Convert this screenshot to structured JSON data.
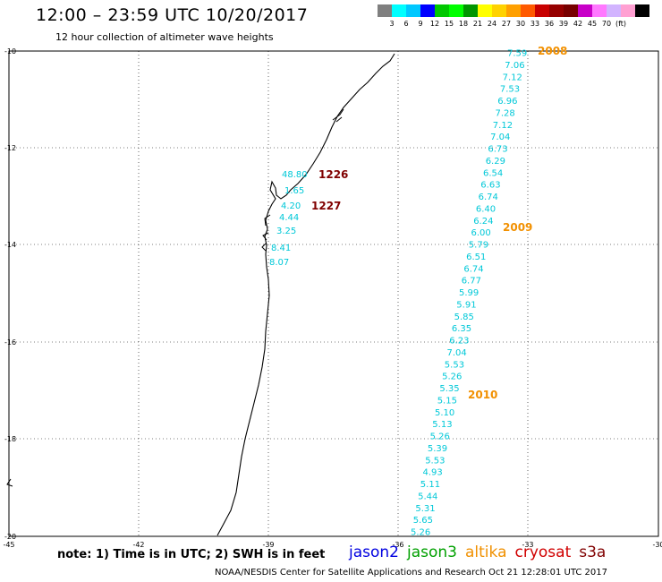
{
  "header": {
    "title": "12:00 – 23:59 UTC 10/20/2017",
    "subtitle": "12 hour collection of altimeter wave heights"
  },
  "colorbar": {
    "colors": [
      "#7f7f7f",
      "#00ffff",
      "#00c8ff",
      "#0000ff",
      "#00c800",
      "#00ff00",
      "#009600",
      "#ffff00",
      "#ffd200",
      "#ffa000",
      "#ff5a00",
      "#c80000",
      "#960000",
      "#780000",
      "#c800c8",
      "#ff78ff",
      "#d2b4ff",
      "#ffa0d2",
      "#000000"
    ],
    "labels": [
      "3",
      "6",
      "9",
      "12",
      "15",
      "18",
      "21",
      "24",
      "27",
      "30",
      "33",
      "36",
      "39",
      "42",
      "45",
      "70",
      "(ft)"
    ]
  },
  "map": {
    "y_ticks": [
      "-10",
      "-12",
      "-14",
      "-16",
      "-18",
      "-20"
    ],
    "x_ticks": [
      "-45",
      "-42",
      "-39",
      "-36",
      "-33",
      "-30"
    ]
  },
  "track_main": {
    "color": "#00c8d8",
    "values": [
      "7.59",
      "7.06",
      "7.12",
      "7.53",
      "6.96",
      "7.28",
      "7.12",
      "7.04",
      "6.73",
      "6.29",
      "6.54",
      "6.63",
      "6.74",
      "6.40",
      "6.24",
      "6.00",
      "5.79",
      "6.51",
      "6.74",
      "6.77",
      "5.99",
      "5.91",
      "5.85",
      "6.35",
      "6.23",
      "7.04",
      "5.53",
      "5.26",
      "5.35",
      "5.15",
      "5.10",
      "5.13",
      "5.26",
      "5.39",
      "5.53",
      "4.93",
      "5.11",
      "5.44",
      "5.31",
      "5.65",
      "5.26"
    ]
  },
  "track_coastal": {
    "values": [
      "48.80",
      "1.65",
      "4.20",
      "4.44",
      "3.25",
      "8.41",
      "8.07"
    ],
    "colors": [
      "#ff78ff",
      "#ff78ff",
      "#00c8d8",
      "#00c8d8",
      "#00c8d8",
      "#ffff00",
      "#66dd44"
    ]
  },
  "time_tags": [
    {
      "label": "2008",
      "color": "#f29000"
    },
    {
      "label": "2009",
      "color": "#f29000"
    },
    {
      "label": "2010",
      "color": "#f29000"
    },
    {
      "label": "1226",
      "color": "#800000"
    },
    {
      "label": "1227",
      "color": "#800000"
    }
  ],
  "footer": {
    "note": "note:  1) Time is in UTC;  2) SWH is in feet",
    "credit": "NOAA/NESDIS Center for Satellite Applications and Research     Oct 21 12:28:01 UTC 2017"
  },
  "satellites": [
    {
      "name": "jason2",
      "color": "#0000e0"
    },
    {
      "name": "jason3",
      "color": "#00a000"
    },
    {
      "name": "altika",
      "color": "#f09000"
    },
    {
      "name": "cryosat",
      "color": "#d00000"
    },
    {
      "name": "s3a",
      "color": "#800000"
    }
  ]
}
